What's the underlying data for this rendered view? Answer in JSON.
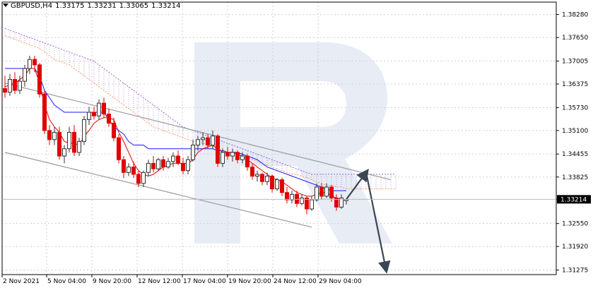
{
  "header": {
    "symbol": "GBPUSD,H4",
    "open": "1.33175",
    "high": "1.33231",
    "low": "1.33065",
    "close": "1.33214",
    "dropdown_icon": "triangle-down-icon"
  },
  "colors": {
    "bull": "#2f2f2f",
    "bear": "#e00000",
    "kijun": "#1a1aff",
    "tenkan": "#e00000",
    "cloud_upper": "#ff9966",
    "cloud_lower": "#9966cc",
    "channel": "#9a9a9a",
    "forecast": "#3b4654",
    "grid": "#d0d0d0",
    "price_tag": "#000000",
    "watermark": "#dfe6f2"
  },
  "chart_data": {
    "type": "candlestick",
    "symbol": "GBPUSD",
    "timeframe": "H4",
    "x_ticks": [
      "2 Nov 2021",
      "5 Nov 04:00",
      "9 Nov 20:00",
      "12 Nov 12:00",
      "17 Nov 04:00",
      "19 Nov 20:00",
      "24 Nov 12:00",
      "29 Nov 04:00"
    ],
    "y_ticks": [
      "1.38280",
      "1.37650",
      "1.37005",
      "1.36375",
      "1.35730",
      "1.35100",
      "1.34455",
      "1.33825",
      "1.33214",
      "1.32550",
      "1.31920",
      "1.31275"
    ],
    "ylim": [
      1.3115,
      1.3862
    ],
    "current_price": "1.33214",
    "ohlc": [
      {
        "o": 1.3625,
        "h": 1.366,
        "l": 1.36,
        "c": 1.3615
      },
      {
        "o": 1.3615,
        "h": 1.3665,
        "l": 1.3605,
        "c": 1.365
      },
      {
        "o": 1.365,
        "h": 1.367,
        "l": 1.361,
        "c": 1.362
      },
      {
        "o": 1.362,
        "h": 1.366,
        "l": 1.361,
        "c": 1.3645
      },
      {
        "o": 1.3645,
        "h": 1.369,
        "l": 1.363,
        "c": 1.368
      },
      {
        "o": 1.368,
        "h": 1.3715,
        "l": 1.3665,
        "c": 1.3705
      },
      {
        "o": 1.3705,
        "h": 1.3715,
        "l": 1.367,
        "c": 1.369
      },
      {
        "o": 1.369,
        "h": 1.3695,
        "l": 1.36,
        "c": 1.361
      },
      {
        "o": 1.361,
        "h": 1.362,
        "l": 1.35,
        "c": 1.351
      },
      {
        "o": 1.351,
        "h": 1.3525,
        "l": 1.347,
        "c": 1.3485
      },
      {
        "o": 1.3485,
        "h": 1.352,
        "l": 1.347,
        "c": 1.3505
      },
      {
        "o": 1.3505,
        "h": 1.352,
        "l": 1.343,
        "c": 1.344
      },
      {
        "o": 1.344,
        "h": 1.347,
        "l": 1.342,
        "c": 1.346
      },
      {
        "o": 1.346,
        "h": 1.352,
        "l": 1.345,
        "c": 1.3505
      },
      {
        "o": 1.3505,
        "h": 1.3525,
        "l": 1.344,
        "c": 1.345
      },
      {
        "o": 1.345,
        "h": 1.349,
        "l": 1.344,
        "c": 1.348
      },
      {
        "o": 1.348,
        "h": 1.355,
        "l": 1.347,
        "c": 1.354
      },
      {
        "o": 1.354,
        "h": 1.3575,
        "l": 1.3525,
        "c": 1.356
      },
      {
        "o": 1.356,
        "h": 1.3575,
        "l": 1.354,
        "c": 1.355
      },
      {
        "o": 1.355,
        "h": 1.3595,
        "l": 1.354,
        "c": 1.3585
      },
      {
        "o": 1.3585,
        "h": 1.36,
        "l": 1.3545,
        "c": 1.3555
      },
      {
        "o": 1.3555,
        "h": 1.357,
        "l": 1.352,
        "c": 1.353
      },
      {
        "o": 1.353,
        "h": 1.3545,
        "l": 1.348,
        "c": 1.349
      },
      {
        "o": 1.349,
        "h": 1.35,
        "l": 1.342,
        "c": 1.343
      },
      {
        "o": 1.343,
        "h": 1.344,
        "l": 1.338,
        "c": 1.3395
      },
      {
        "o": 1.3395,
        "h": 1.342,
        "l": 1.3385,
        "c": 1.341
      },
      {
        "o": 1.341,
        "h": 1.3425,
        "l": 1.338,
        "c": 1.339
      },
      {
        "o": 1.339,
        "h": 1.34,
        "l": 1.3355,
        "c": 1.3365
      },
      {
        "o": 1.3365,
        "h": 1.34,
        "l": 1.3355,
        "c": 1.3395
      },
      {
        "o": 1.3395,
        "h": 1.343,
        "l": 1.3385,
        "c": 1.342
      },
      {
        "o": 1.342,
        "h": 1.344,
        "l": 1.3395,
        "c": 1.3405
      },
      {
        "o": 1.3405,
        "h": 1.3435,
        "l": 1.34,
        "c": 1.343
      },
      {
        "o": 1.343,
        "h": 1.344,
        "l": 1.34,
        "c": 1.341
      },
      {
        "o": 1.341,
        "h": 1.3435,
        "l": 1.3405,
        "c": 1.3425
      },
      {
        "o": 1.3425,
        "h": 1.345,
        "l": 1.341,
        "c": 1.344
      },
      {
        "o": 1.344,
        "h": 1.3455,
        "l": 1.3415,
        "c": 1.342
      },
      {
        "o": 1.342,
        "h": 1.3435,
        "l": 1.339,
        "c": 1.34
      },
      {
        "o": 1.34,
        "h": 1.344,
        "l": 1.339,
        "c": 1.343
      },
      {
        "o": 1.343,
        "h": 1.3485,
        "l": 1.3425,
        "c": 1.347
      },
      {
        "o": 1.347,
        "h": 1.3495,
        "l": 1.3455,
        "c": 1.3485
      },
      {
        "o": 1.3485,
        "h": 1.3505,
        "l": 1.347,
        "c": 1.349
      },
      {
        "o": 1.349,
        "h": 1.35,
        "l": 1.346,
        "c": 1.347
      },
      {
        "o": 1.347,
        "h": 1.351,
        "l": 1.346,
        "c": 1.3495
      },
      {
        "o": 1.3495,
        "h": 1.35,
        "l": 1.341,
        "c": 1.342
      },
      {
        "o": 1.342,
        "h": 1.346,
        "l": 1.341,
        "c": 1.345
      },
      {
        "o": 1.345,
        "h": 1.3465,
        "l": 1.343,
        "c": 1.344
      },
      {
        "o": 1.344,
        "h": 1.346,
        "l": 1.3425,
        "c": 1.345
      },
      {
        "o": 1.345,
        "h": 1.3455,
        "l": 1.342,
        "c": 1.343
      },
      {
        "o": 1.343,
        "h": 1.345,
        "l": 1.342,
        "c": 1.344
      },
      {
        "o": 1.344,
        "h": 1.3445,
        "l": 1.34,
        "c": 1.341
      },
      {
        "o": 1.341,
        "h": 1.342,
        "l": 1.3375,
        "c": 1.3385
      },
      {
        "o": 1.3385,
        "h": 1.34,
        "l": 1.337,
        "c": 1.339
      },
      {
        "o": 1.339,
        "h": 1.3395,
        "l": 1.336,
        "c": 1.337
      },
      {
        "o": 1.337,
        "h": 1.3395,
        "l": 1.336,
        "c": 1.3385
      },
      {
        "o": 1.3385,
        "h": 1.339,
        "l": 1.334,
        "c": 1.335
      },
      {
        "o": 1.335,
        "h": 1.338,
        "l": 1.3345,
        "c": 1.3375
      },
      {
        "o": 1.3375,
        "h": 1.338,
        "l": 1.333,
        "c": 1.334
      },
      {
        "o": 1.334,
        "h": 1.3355,
        "l": 1.331,
        "c": 1.332
      },
      {
        "o": 1.332,
        "h": 1.3345,
        "l": 1.331,
        "c": 1.3335
      },
      {
        "o": 1.3335,
        "h": 1.3345,
        "l": 1.33,
        "c": 1.331
      },
      {
        "o": 1.331,
        "h": 1.3335,
        "l": 1.3305,
        "c": 1.3325
      },
      {
        "o": 1.3325,
        "h": 1.333,
        "l": 1.328,
        "c": 1.3295
      },
      {
        "o": 1.3295,
        "h": 1.333,
        "l": 1.329,
        "c": 1.332
      },
      {
        "o": 1.332,
        "h": 1.3365,
        "l": 1.3315,
        "c": 1.3355
      },
      {
        "o": 1.3355,
        "h": 1.3365,
        "l": 1.332,
        "c": 1.333
      },
      {
        "o": 1.333,
        "h": 1.3365,
        "l": 1.3325,
        "c": 1.3355
      },
      {
        "o": 1.3355,
        "h": 1.336,
        "l": 1.3315,
        "c": 1.3325
      },
      {
        "o": 1.3325,
        "h": 1.3335,
        "l": 1.329,
        "c": 1.33
      },
      {
        "o": 1.33,
        "h": 1.3335,
        "l": 1.3295,
        "c": 1.3325
      },
      {
        "o": 1.3318,
        "h": 1.3323,
        "l": 1.3307,
        "c": 1.3321
      }
    ],
    "tenkan_sen": [
      1.363,
      1.3635,
      1.364,
      1.365,
      1.366,
      1.368,
      1.368,
      1.364,
      1.358,
      1.354,
      1.352,
      1.3505,
      1.348,
      1.3475,
      1.3475,
      1.347,
      1.3495,
      1.351,
      1.353,
      1.354,
      1.3545,
      1.3545,
      1.354,
      1.3505,
      1.348,
      1.345,
      1.342,
      1.34,
      1.339,
      1.3385,
      1.339,
      1.34,
      1.341,
      1.3415,
      1.342,
      1.342,
      1.342,
      1.342,
      1.343,
      1.345,
      1.346,
      1.3465,
      1.347,
      1.346,
      1.345,
      1.345,
      1.345,
      1.3445,
      1.344,
      1.343,
      1.342,
      1.341,
      1.34,
      1.339,
      1.338,
      1.3375,
      1.337,
      1.336,
      1.335,
      1.334,
      1.3335,
      1.333,
      1.333,
      1.3335,
      1.334,
      1.334,
      1.333,
      1.3325,
      1.332,
      1.332
    ],
    "kijun_sen": [
      1.368,
      1.368,
      1.368,
      1.368,
      1.368,
      1.368,
      1.368,
      1.366,
      1.362,
      1.36,
      1.358,
      1.357,
      1.356,
      1.356,
      1.356,
      1.356,
      1.356,
      1.356,
      1.356,
      1.356,
      1.356,
      1.354,
      1.352,
      1.351,
      1.35,
      1.348,
      1.347,
      1.347,
      1.347,
      1.346,
      1.346,
      1.346,
      1.346,
      1.346,
      1.346,
      1.346,
      1.346,
      1.346,
      1.346,
      1.346,
      1.346,
      1.346,
      1.346,
      1.3455,
      1.3455,
      1.345,
      1.345,
      1.345,
      1.3445,
      1.344,
      1.3435,
      1.343,
      1.342,
      1.341,
      1.3405,
      1.34,
      1.3395,
      1.339,
      1.3385,
      1.338,
      1.3375,
      1.337,
      1.3365,
      1.336,
      1.3355,
      1.335,
      1.3345,
      1.3345,
      1.3345,
      1.3345
    ],
    "cloud_span_a": [
      1.377,
      1.3765,
      1.376,
      1.3755,
      1.375,
      1.3745,
      1.374,
      1.3735,
      1.3725,
      1.3715,
      1.3705,
      1.37,
      1.3695,
      1.369,
      1.368,
      1.367,
      1.366,
      1.365,
      1.364,
      1.363,
      1.362,
      1.361,
      1.36,
      1.359,
      1.358,
      1.357,
      1.356,
      1.355,
      1.354,
      1.353,
      1.352,
      1.3515,
      1.351,
      1.3505,
      1.35,
      1.3495,
      1.349,
      1.3485,
      1.348,
      1.348,
      1.3475,
      1.347,
      1.3465,
      1.346,
      1.3455,
      1.345,
      1.345,
      1.3445,
      1.344,
      1.3435,
      1.343,
      1.3425,
      1.342,
      1.3415,
      1.341,
      1.3405,
      1.34,
      1.3395,
      1.339,
      1.339,
      1.3385,
      1.338,
      1.3375,
      1.337,
      1.3365,
      1.336,
      1.336,
      1.3355,
      1.3355,
      1.335,
      1.335,
      1.335,
      1.335,
      1.335,
      1.335,
      1.335,
      1.335,
      1.335,
      1.335,
      1.335
    ],
    "cloud_span_b": [
      1.379,
      1.3785,
      1.378,
      1.3775,
      1.377,
      1.3765,
      1.376,
      1.3755,
      1.375,
      1.3745,
      1.374,
      1.3735,
      1.373,
      1.3725,
      1.372,
      1.3715,
      1.371,
      1.3705,
      1.37,
      1.369,
      1.368,
      1.367,
      1.366,
      1.365,
      1.364,
      1.363,
      1.362,
      1.361,
      1.36,
      1.359,
      1.358,
      1.357,
      1.356,
      1.355,
      1.354,
      1.353,
      1.352,
      1.3515,
      1.351,
      1.3505,
      1.35,
      1.3495,
      1.349,
      1.3485,
      1.348,
      1.3475,
      1.347,
      1.3465,
      1.346,
      1.3455,
      1.345,
      1.3445,
      1.344,
      1.3435,
      1.343,
      1.3425,
      1.342,
      1.3415,
      1.341,
      1.3405,
      1.34,
      1.3395,
      1.339,
      1.339,
      1.339,
      1.339,
      1.339,
      1.339,
      1.339,
      1.339,
      1.339,
      1.339,
      1.339,
      1.339,
      1.339,
      1.339,
      1.339,
      1.339,
      1.339,
      1.339
    ],
    "channel_upper": [
      [
        0,
        1.364
      ],
      [
        78,
        1.3375
      ]
    ],
    "channel_lower": [
      [
        0,
        1.345
      ],
      [
        62,
        1.3245
      ]
    ],
    "forecast_path": [
      [
        69,
        1.33214
      ],
      [
        73,
        1.3395
      ],
      [
        77,
        1.313
      ]
    ]
  }
}
